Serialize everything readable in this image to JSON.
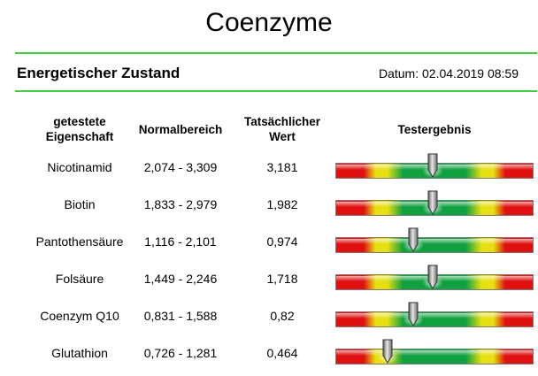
{
  "title": "Coenzyme",
  "section_title": "Energetischer Zustand",
  "datum": "Datum: 02.04.2019 08:59",
  "headers": {
    "property_line1": "getestete",
    "property_line2": "Eigenschaft",
    "normal": "Normalbereich",
    "actual_line1": "Tatsächlicher",
    "actual_line2": "Wert",
    "result": "Testergebnis"
  },
  "rows": [
    {
      "name": "Nicotinamid",
      "range": "2,074 - 3,309",
      "value": "3,181",
      "gauge": 0.49
    },
    {
      "name": "Biotin",
      "range": "1,833 - 2,979",
      "value": "1,982",
      "gauge": 0.49
    },
    {
      "name": "Pantothensäure",
      "range": "1,116 - 2,101",
      "value": "0,974",
      "gauge": 0.39
    },
    {
      "name": "Folsäure",
      "range": "1,449 - 2,246",
      "value": "1,718",
      "gauge": 0.49
    },
    {
      "name": "Coenzym Q10",
      "range": "0,831 - 1,588",
      "value": "0,82",
      "gauge": 0.39
    },
    {
      "name": "Glutathion",
      "range": "0,726 - 1,281",
      "value": "0,464",
      "gauge": 0.26
    }
  ],
  "colors": {
    "rule": "#3ed13e",
    "red": "#e01010",
    "yellow": "#e6e010",
    "green": "#10a040"
  }
}
